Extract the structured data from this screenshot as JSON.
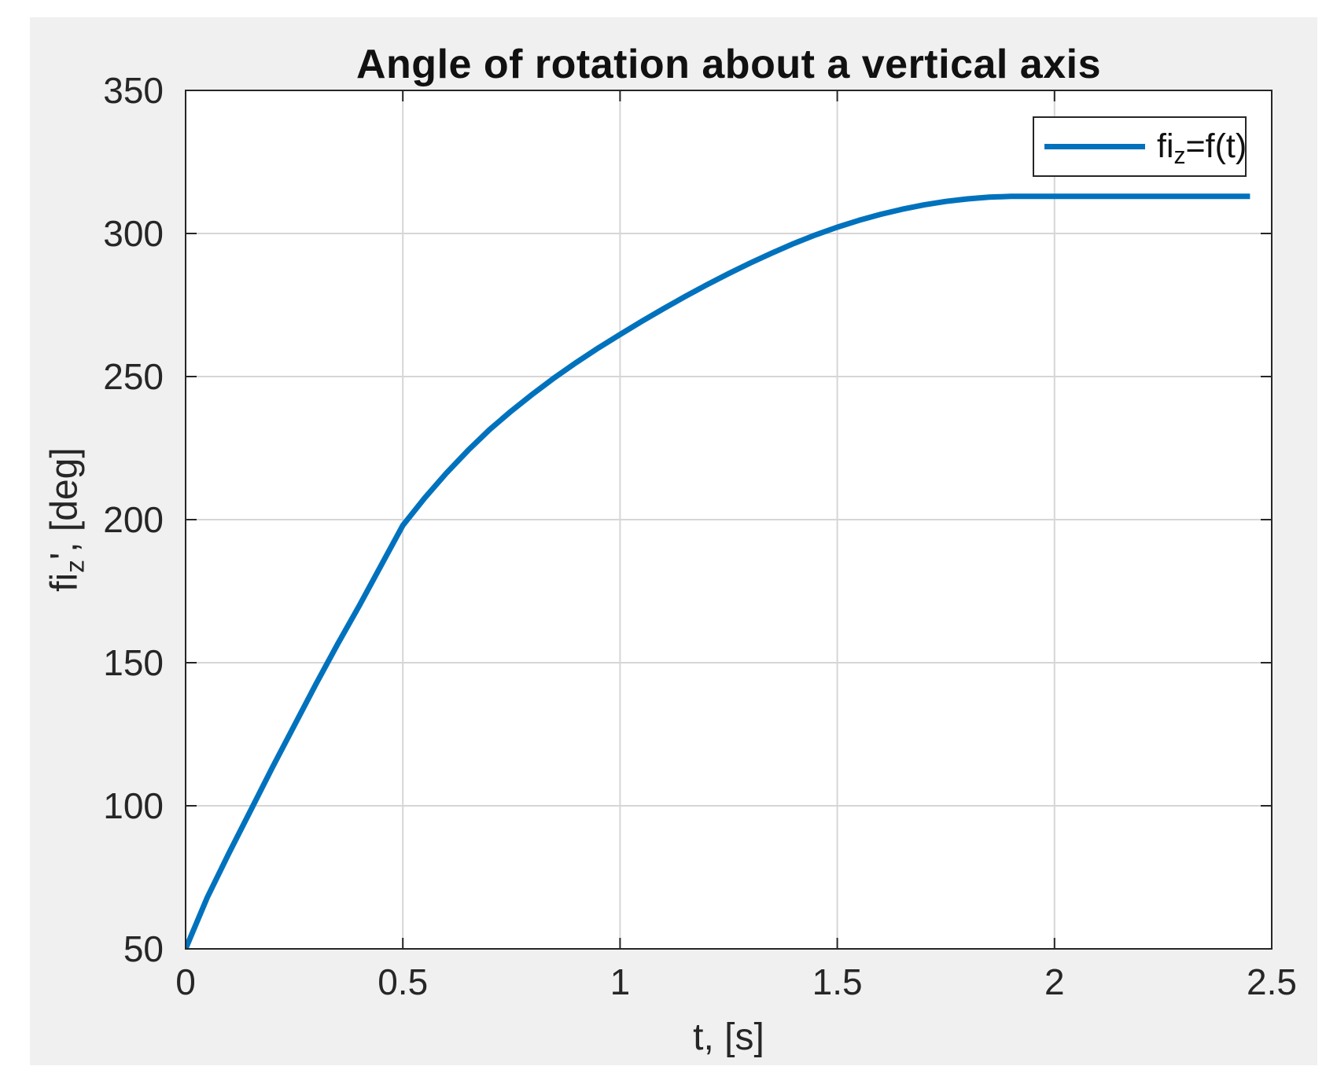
{
  "window": {
    "background_color": "#ffffff",
    "figure_background_color": "#f0f0f0"
  },
  "colors": {
    "plot_background": "#ffffff",
    "axis_border": "#262626",
    "grid": "#d6d6d6",
    "tick_label": "#262626",
    "title_text": "#111111",
    "series_line": "#0072bd",
    "legend_border": "#262626",
    "legend_background": "#ffffff"
  },
  "chart_data": {
    "type": "line",
    "title": "Angle of rotation about a vertical axis",
    "xlabel": "t, [s]",
    "ylabel": "fi_z', [deg]",
    "xlabel_rich": {
      "pre": "t, [s]",
      "sub": "",
      "post": ""
    },
    "ylabel_rich": {
      "pre": "fi",
      "sub": "z",
      "post": "', [deg]"
    },
    "xlim": [
      0,
      2.5
    ],
    "ylim": [
      50,
      350
    ],
    "xticks": [
      0,
      0.5,
      1,
      1.5,
      2,
      2.5
    ],
    "xtick_labels": [
      "0",
      "0.5",
      "1",
      "1.5",
      "2",
      "2.5"
    ],
    "yticks": [
      50,
      100,
      150,
      200,
      250,
      300,
      350
    ],
    "ytick_labels": [
      "50",
      "100",
      "150",
      "200",
      "250",
      "300",
      "350"
    ],
    "grid": true,
    "legend": {
      "position": "northeast",
      "entries": [
        {
          "label": "fi_z=f(t)",
          "label_rich": {
            "pre": "fi",
            "sub": "z",
            "post": "=f(t)"
          },
          "color": "#0072bd"
        }
      ]
    },
    "series": [
      {
        "name": "fi_z=f(t)",
        "color": "#0072bd",
        "line_width": 7,
        "x": [
          0,
          0.05,
          0.1,
          0.15,
          0.2,
          0.25,
          0.3,
          0.35,
          0.4,
          0.45,
          0.5,
          0.55,
          0.6,
          0.65,
          0.7,
          0.75,
          0.8,
          0.85,
          0.9,
          0.95,
          1.0,
          1.05,
          1.1,
          1.15,
          1.2,
          1.25,
          1.3,
          1.35,
          1.4,
          1.45,
          1.5,
          1.55,
          1.6,
          1.65,
          1.7,
          1.75,
          1.8,
          1.85,
          1.9,
          1.95,
          2.0,
          2.05,
          2.1,
          2.15,
          2.2,
          2.25,
          2.3,
          2.35,
          2.4,
          2.45
        ],
        "y": [
          50,
          68,
          83.5,
          98.5,
          113.5,
          128,
          142.5,
          156.5,
          170,
          184,
          198,
          207.5,
          216.2,
          224.2,
          231.5,
          238,
          244,
          249.7,
          255,
          260,
          264.7,
          269.3,
          273.7,
          278.0,
          282.1,
          286.0,
          289.7,
          293.2,
          296.5,
          299.5,
          302.2,
          304.6,
          306.7,
          308.5,
          310.0,
          311.2,
          312.1,
          312.7,
          313,
          313,
          313,
          313,
          313,
          313,
          313,
          313,
          313,
          313,
          313,
          313
        ]
      }
    ]
  }
}
